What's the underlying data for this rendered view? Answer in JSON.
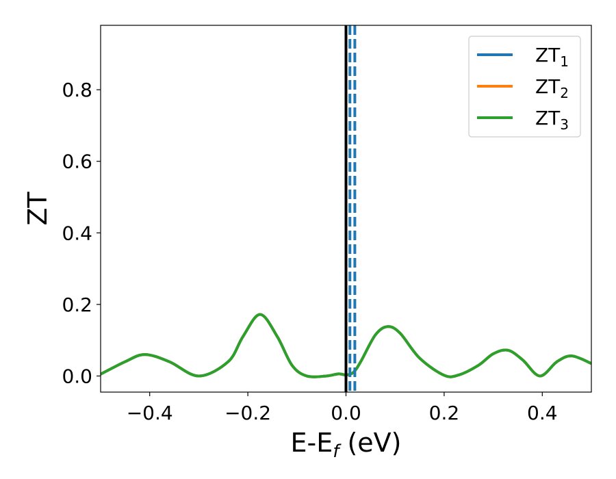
{
  "chart_data": {
    "type": "line",
    "xlabel": "E-E",
    "xlabel_sub": "f",
    "xlabel_unit": " (eV)",
    "ylabel": "ZT",
    "xlim": [
      -0.5,
      0.5
    ],
    "ylim": [
      -0.045,
      0.98
    ],
    "grid": false,
    "legend_position": "top-right",
    "x_ticks": [
      {
        "value": -0.4,
        "label": "−0.4"
      },
      {
        "value": -0.2,
        "label": "−0.2"
      },
      {
        "value": 0.0,
        "label": "0.0"
      },
      {
        "value": 0.2,
        "label": "0.2"
      },
      {
        "value": 0.4,
        "label": "0.4"
      }
    ],
    "y_ticks": [
      {
        "value": 0.0,
        "label": "0.0"
      },
      {
        "value": 0.2,
        "label": "0.2"
      },
      {
        "value": 0.4,
        "label": "0.4"
      },
      {
        "value": 0.6,
        "label": "0.6"
      },
      {
        "value": 0.8,
        "label": "0.8"
      }
    ],
    "series": [
      {
        "name": "ZT",
        "sub": "1",
        "color": "#1f77b4",
        "x": [
          -0.5,
          -0.45,
          -0.41,
          -0.36,
          -0.3,
          -0.24,
          -0.21,
          -0.175,
          -0.14,
          -0.11,
          -0.08,
          -0.04,
          -0.015,
          0.0,
          0.015,
          0.03,
          0.06,
          0.085,
          0.11,
          0.15,
          0.2,
          0.23,
          0.27,
          0.3,
          0.33,
          0.36,
          0.395,
          0.43,
          0.46,
          0.5
        ],
        "y": [
          0.005,
          0.04,
          0.06,
          0.04,
          0.0,
          0.04,
          0.11,
          0.172,
          0.11,
          0.03,
          0.0,
          0.0,
          0.006,
          0.003,
          0.01,
          0.04,
          0.115,
          0.138,
          0.12,
          0.05,
          0.002,
          0.003,
          0.03,
          0.062,
          0.072,
          0.045,
          0.0,
          0.04,
          0.056,
          0.035
        ]
      },
      {
        "name": "ZT",
        "sub": "2",
        "color": "#ff7f0e",
        "x": [
          -0.5,
          -0.45,
          -0.41,
          -0.36,
          -0.3,
          -0.24,
          -0.21,
          -0.175,
          -0.14,
          -0.11,
          -0.08,
          -0.04,
          -0.015,
          0.0,
          0.015,
          0.03,
          0.06,
          0.085,
          0.11,
          0.15,
          0.2,
          0.23,
          0.27,
          0.3,
          0.33,
          0.36,
          0.395,
          0.43,
          0.46,
          0.5
        ],
        "y": [
          0.005,
          0.04,
          0.06,
          0.04,
          0.0,
          0.04,
          0.11,
          0.172,
          0.11,
          0.03,
          0.0,
          0.0,
          0.006,
          0.003,
          0.01,
          0.04,
          0.115,
          0.138,
          0.12,
          0.05,
          0.002,
          0.003,
          0.03,
          0.062,
          0.072,
          0.045,
          0.0,
          0.04,
          0.056,
          0.035
        ]
      },
      {
        "name": "ZT",
        "sub": "3",
        "color": "#2ca02c",
        "x": [
          -0.5,
          -0.45,
          -0.41,
          -0.36,
          -0.3,
          -0.24,
          -0.21,
          -0.175,
          -0.14,
          -0.11,
          -0.08,
          -0.04,
          -0.015,
          0.0,
          0.015,
          0.03,
          0.06,
          0.085,
          0.11,
          0.15,
          0.2,
          0.23,
          0.27,
          0.3,
          0.33,
          0.36,
          0.395,
          0.43,
          0.46,
          0.5
        ],
        "y": [
          0.005,
          0.04,
          0.06,
          0.04,
          0.0,
          0.04,
          0.11,
          0.172,
          0.11,
          0.03,
          0.0,
          0.0,
          0.006,
          0.003,
          0.01,
          0.04,
          0.115,
          0.138,
          0.12,
          0.05,
          0.002,
          0.003,
          0.03,
          0.062,
          0.072,
          0.045,
          0.0,
          0.04,
          0.056,
          0.035
        ]
      }
    ],
    "vlines": [
      {
        "x": 0.0,
        "color": "#000000",
        "style": "solid"
      },
      {
        "x": 0.008,
        "color": "#1f77b4",
        "style": "dashed"
      },
      {
        "x": 0.018,
        "color": "#1f77b4",
        "style": "dashed"
      }
    ]
  }
}
